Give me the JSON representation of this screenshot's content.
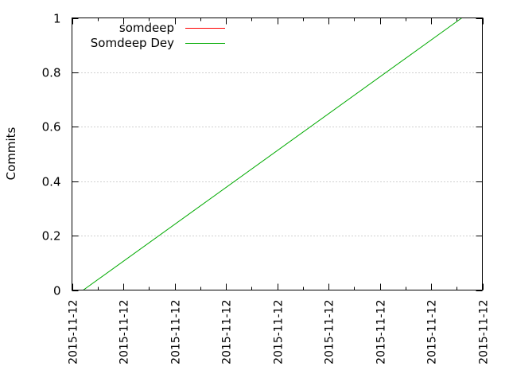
{
  "chart_data": {
    "type": "line",
    "title": "",
    "xlabel": "",
    "ylabel": "Commits",
    "ylim": [
      0,
      1
    ],
    "yticks": [
      "0",
      "0.2",
      "0.4",
      "0.6",
      "0.8",
      "1"
    ],
    "xlim": [
      0,
      8
    ],
    "xticks": [
      "2015-11-12",
      "2015-11-12",
      "2015-11-12",
      "2015-11-12",
      "2015-11-12",
      "2015-11-12",
      "2015-11-12",
      "2015-11-12",
      "2015-11-12"
    ],
    "grid": "y-dotted",
    "legend": "top-left",
    "series": [
      {
        "name": "somdeep",
        "color": "#ff0000",
        "x": [],
        "y": []
      },
      {
        "name": "Somdeep Dey",
        "color": "#00aa00",
        "x": [
          0.22,
          7.6
        ],
        "y": [
          0,
          1
        ]
      }
    ]
  }
}
